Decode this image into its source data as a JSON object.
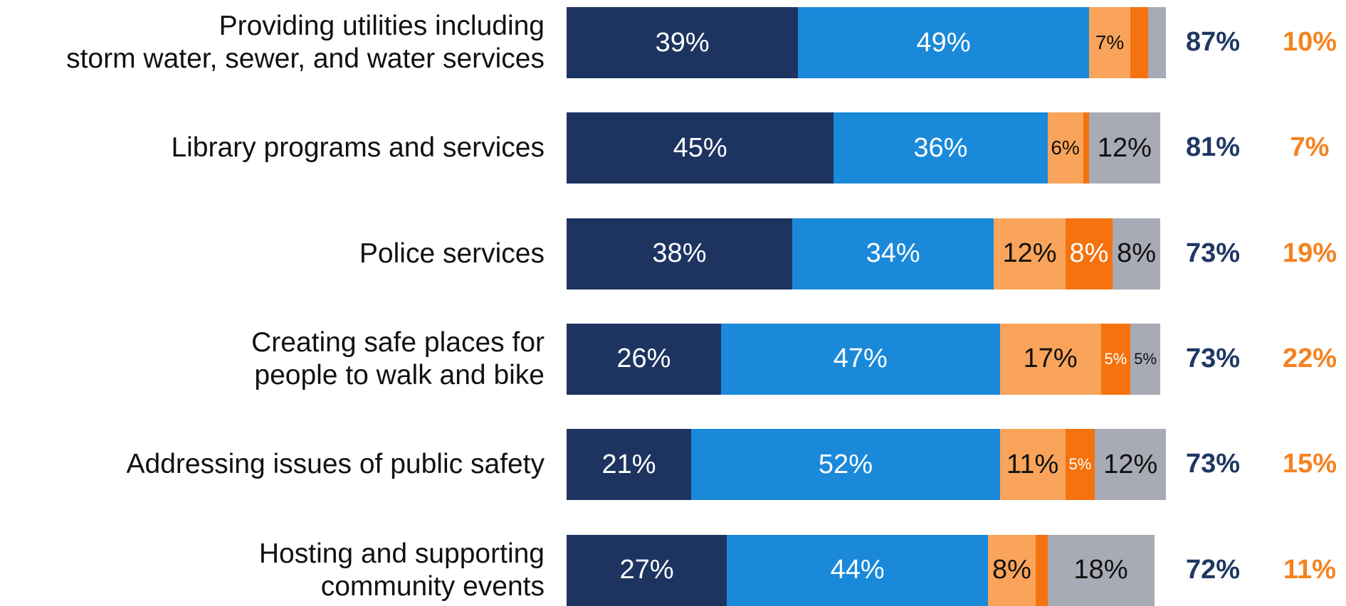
{
  "chart_data": {
    "type": "stacked-bar-horizontal",
    "categories": [
      "Providing utilities including\nstorm water, sewer, and water services",
      "Library programs and services",
      "Police services",
      "Creating safe places for\npeople to walk and bike",
      "Addressing issues of public safety",
      "Hosting and supporting\ncommunity events"
    ],
    "xlim": [
      0,
      100
    ],
    "series": [
      {
        "color": "#1d3461",
        "text_color": "#ffffff",
        "values": [
          39,
          45,
          38,
          26,
          21,
          27
        ],
        "value_labels": [
          "39%",
          "45%",
          "38%",
          "26%",
          "21%",
          "27%"
        ]
      },
      {
        "color": "#1a89d9",
        "text_color": "#ffffff",
        "values": [
          49,
          36,
          34,
          47,
          52,
          44
        ],
        "value_labels": [
          "49%",
          "36%",
          "34%",
          "47%",
          "52%",
          "44%"
        ]
      },
      {
        "color": "#f9a45a",
        "text_color": "#111111",
        "values": [
          7,
          6,
          12,
          17,
          11,
          8
        ],
        "value_labels": [
          "7%",
          "6%",
          "12%",
          "17%",
          "11%",
          "8%"
        ]
      },
      {
        "color": "#f5720f",
        "text_color": "#ffffff",
        "values": [
          3,
          1,
          8,
          5,
          5,
          2
        ],
        "value_labels": [
          null,
          null,
          "8%",
          "5%",
          "5%",
          null
        ]
      },
      {
        "color": "#a8aab5",
        "text_color": "#111111",
        "values": [
          3,
          12,
          8,
          5,
          12,
          18
        ],
        "value_labels": [
          null,
          "12%",
          "8%",
          "5%",
          "12%",
          "18%"
        ]
      }
    ],
    "totals": [
      {
        "color": "#1f3864",
        "values": [
          87,
          81,
          73,
          73,
          73,
          72
        ],
        "value_labels": [
          "87%",
          "81%",
          "73%",
          "73%",
          "73%",
          "72%"
        ]
      },
      {
        "color": "#f5821f",
        "values": [
          10,
          7,
          19,
          22,
          15,
          11
        ],
        "value_labels": [
          "10%",
          "7%",
          "19%",
          "22%",
          "15%",
          "11%"
        ]
      }
    ]
  }
}
